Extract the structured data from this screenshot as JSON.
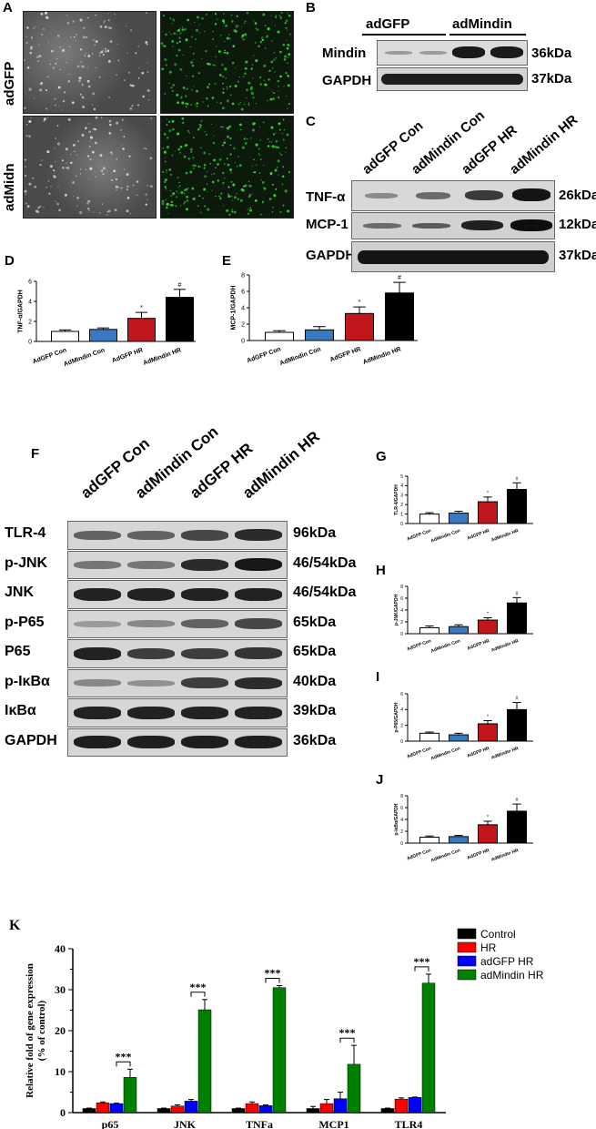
{
  "panelA": {
    "letter": "A",
    "rows": [
      "adGFP",
      "adMidn"
    ]
  },
  "panelB": {
    "letter": "B",
    "groups": [
      "adGFP",
      "adMindin"
    ],
    "rows": [
      {
        "label": "Mindin",
        "kda": "36kDa"
      },
      {
        "label": "GAPDH",
        "kda": "37kDa"
      }
    ]
  },
  "panelC": {
    "letter": "C",
    "columns": [
      "adGFP Con",
      "adMindin Con",
      "adGFP HR",
      "adMindin HR"
    ],
    "rows": [
      {
        "label": "TNF-α",
        "kda": "26kDa"
      },
      {
        "label": "MCP-1",
        "kda": "12kDa"
      },
      {
        "label": "GAPDH",
        "kda": "37kDa"
      }
    ]
  },
  "panelF": {
    "letter": "F",
    "columns": [
      "adGFP Con",
      "adMindin Con",
      "adGFP HR",
      "adMindin HR"
    ],
    "rows": [
      {
        "label": "TLR-4",
        "kda": "96kDa"
      },
      {
        "label": "p-JNK",
        "kda": "46/54kDa"
      },
      {
        "label": "JNK",
        "kda": "46/54kDa"
      },
      {
        "label": "p-P65",
        "kda": "65kDa"
      },
      {
        "label": "P65",
        "kda": "65kDa"
      },
      {
        "label": "p-IκBα",
        "kda": "40kDa"
      },
      {
        "label": "IκBα",
        "kda": "39kDa"
      },
      {
        "label": "GAPDH",
        "kda": "36kDa"
      }
    ]
  },
  "colors": {
    "white": "#ffffff",
    "blue": "#3a78c3",
    "red": "#c0161c",
    "black": "#000000",
    "k_control": "#000000",
    "k_hr": "#ff0000",
    "k_adgfp": "#0000ff",
    "k_admindin": "#008000"
  },
  "chart_data": [
    {
      "id": "D",
      "type": "bar",
      "letter": "D",
      "categories": [
        "AdGFP Con",
        "AdMindin Con",
        "AdGFP HR",
        "AdMindin HR"
      ],
      "values": [
        1.0,
        1.2,
        2.3,
        4.4
      ],
      "errors": [
        0.15,
        0.15,
        0.6,
        0.8
      ],
      "annotations": [
        "",
        "",
        "*",
        "#"
      ],
      "ylabel": "TNF-α/GAPDH",
      "ylim": [
        0,
        6
      ],
      "yticks": [
        0,
        2,
        4,
        6
      ]
    },
    {
      "id": "E",
      "type": "bar",
      "letter": "E",
      "categories": [
        "AdGFP Con",
        "AdMindin Con",
        "AdGFP HR",
        "AdMindin HR"
      ],
      "values": [
        1.0,
        1.3,
        3.3,
        5.8
      ],
      "errors": [
        0.2,
        0.4,
        0.8,
        1.3
      ],
      "annotations": [
        "",
        "",
        "*",
        "#"
      ],
      "ylabel": "MCP-1/GAPDH",
      "ylim": [
        0,
        8
      ],
      "yticks": [
        0,
        2,
        4,
        6,
        8
      ]
    },
    {
      "id": "G",
      "type": "bar",
      "letter": "G",
      "categories": [
        "AdGFP Con",
        "AdMindin Con",
        "AdGFP HR",
        "AdMindin HR"
      ],
      "values": [
        1.0,
        1.1,
        2.3,
        3.6
      ],
      "errors": [
        0.15,
        0.2,
        0.5,
        0.7
      ],
      "annotations": [
        "",
        "",
        "*",
        "#"
      ],
      "ylabel": "TLR-4/GAPDH",
      "ylim": [
        0,
        5
      ],
      "yticks": [
        0,
        1,
        2,
        3,
        4,
        5
      ]
    },
    {
      "id": "H",
      "type": "bar",
      "letter": "H",
      "categories": [
        "AdGFP Con",
        "AdMindin Con",
        "AdGFP HR",
        "AdMindin HR"
      ],
      "values": [
        1.0,
        1.2,
        2.3,
        5.2
      ],
      "errors": [
        0.3,
        0.3,
        0.4,
        0.9
      ],
      "annotations": [
        "",
        "",
        "*",
        "#"
      ],
      "ylabel": "p-JNK/GAPDH",
      "ylim": [
        0,
        8
      ],
      "yticks": [
        0,
        2,
        4,
        6,
        8
      ]
    },
    {
      "id": "I",
      "type": "bar",
      "letter": "I",
      "categories": [
        "AdGFP Con",
        "AdMindin Con",
        "AdGFP HR",
        "AdMindin HR"
      ],
      "values": [
        1.0,
        0.8,
        2.2,
        4.0
      ],
      "errors": [
        0.15,
        0.2,
        0.4,
        0.9
      ],
      "annotations": [
        "",
        "",
        "*",
        "#"
      ],
      "ylabel": "p-P65/GAPDH",
      "ylim": [
        0,
        6
      ],
      "yticks": [
        0,
        2,
        4,
        6
      ]
    },
    {
      "id": "J",
      "type": "bar",
      "letter": "J",
      "categories": [
        "AdGFP Con",
        "AdMindin Con",
        "AdGFP HR",
        "AdMindin HR"
      ],
      "values": [
        1.0,
        1.1,
        3.1,
        5.4
      ],
      "errors": [
        0.2,
        0.2,
        0.6,
        1.2
      ],
      "annotations": [
        "",
        "",
        "*",
        "#"
      ],
      "ylabel": "p-IκBα/GAPDH",
      "ylim": [
        0,
        8
      ],
      "yticks": [
        0,
        2,
        4,
        6,
        8
      ]
    },
    {
      "id": "K",
      "type": "bar",
      "letter": "K",
      "categories": [
        "p65",
        "JNK",
        "TNFa",
        "MCP1",
        "TLR4"
      ],
      "series": [
        {
          "name": "Control",
          "values": [
            1.0,
            1.0,
            1.0,
            1.0,
            1.0
          ],
          "errors": [
            0.1,
            0.1,
            0.1,
            0.5,
            0.1
          ]
        },
        {
          "name": "HR",
          "values": [
            2.4,
            1.6,
            2.2,
            2.2,
            3.3
          ],
          "errors": [
            0.2,
            0.3,
            0.4,
            1.0,
            0.3
          ]
        },
        {
          "name": "adGFP HR",
          "values": [
            2.2,
            2.8,
            1.7,
            3.4,
            3.7
          ],
          "errors": [
            0.1,
            0.4,
            0.2,
            1.6,
            0.1
          ]
        },
        {
          "name": "adMindin HR",
          "values": [
            8.6,
            25.1,
            30.5,
            11.8,
            31.6
          ],
          "errors": [
            2.0,
            2.5,
            0.5,
            4.6,
            2.2
          ]
        }
      ],
      "significance": "***",
      "ylabel": "Relative fold of gene expression (% of control)",
      "ylabel_lines": [
        "Relative fold of gene expression",
        "(% of control)"
      ],
      "ylim": [
        0,
        40
      ],
      "yticks": [
        0,
        10,
        20,
        30,
        40
      ],
      "legend": "top-right"
    }
  ]
}
